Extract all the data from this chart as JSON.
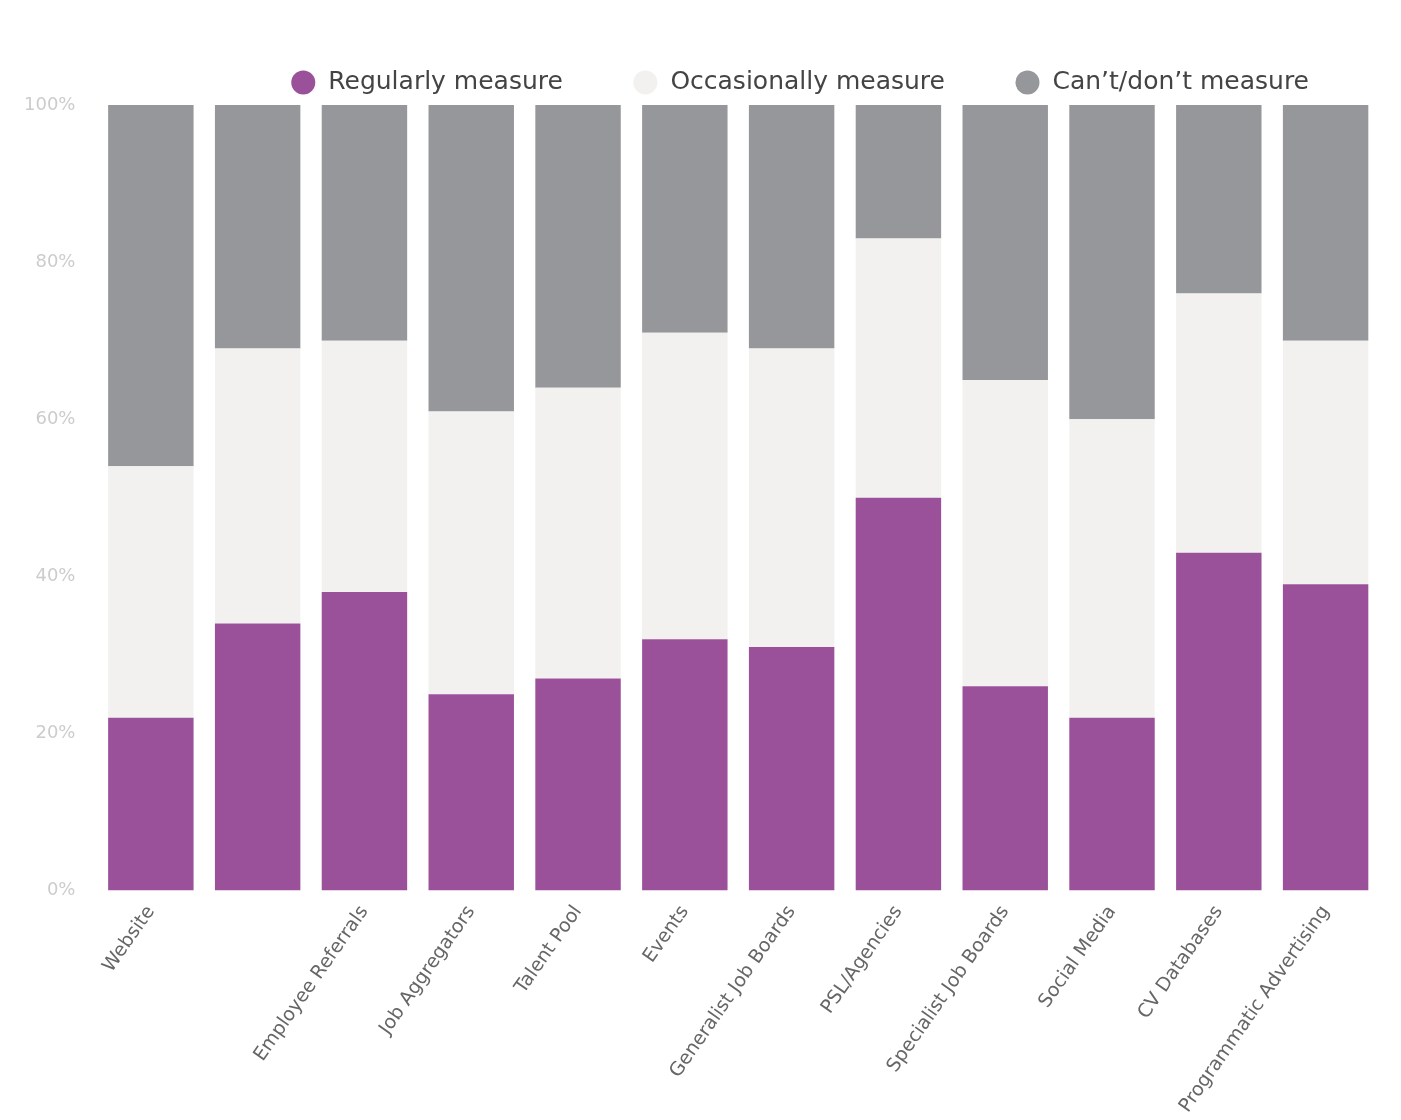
{
  "chart_data": {
    "type": "bar",
    "stacked": true,
    "categories": [
      "Website",
      null,
      "Employee Referrals",
      "Job Aggregators",
      "Talent Pool",
      "Events",
      "Generalist Job Boards",
      "PSL/Agencies",
      "Specialist Job Boards",
      "Social Media",
      "CV Databases",
      "Programmatic Advertising"
    ],
    "series": [
      {
        "name": "Regularly measure",
        "color": "#9b519a",
        "values": [
          22,
          34,
          38,
          25,
          27,
          32,
          31,
          50,
          26,
          22,
          43,
          39
        ]
      },
      {
        "name": "Occasionally measure",
        "color": "#f2f1f0",
        "values": [
          32,
          35,
          32,
          36,
          37,
          39,
          38,
          33,
          39,
          38,
          33,
          31
        ]
      },
      {
        "name": "Can’t/don’t measure",
        "color": "#96979b",
        "values": [
          46,
          31,
          30,
          39,
          36,
          29,
          31,
          17,
          35,
          40,
          24,
          30
        ]
      }
    ],
    "ylim": [
      0,
      100
    ],
    "yticks": [
      {
        "value": 0,
        "label": "0%"
      },
      {
        "value": 20,
        "label": "20%"
      },
      {
        "value": 40,
        "label": "40%"
      },
      {
        "value": 60,
        "label": "60%"
      },
      {
        "value": 80,
        "label": "80%"
      },
      {
        "value": 100,
        "label": "100%"
      }
    ],
    "grid": false,
    "legend": "top right"
  }
}
